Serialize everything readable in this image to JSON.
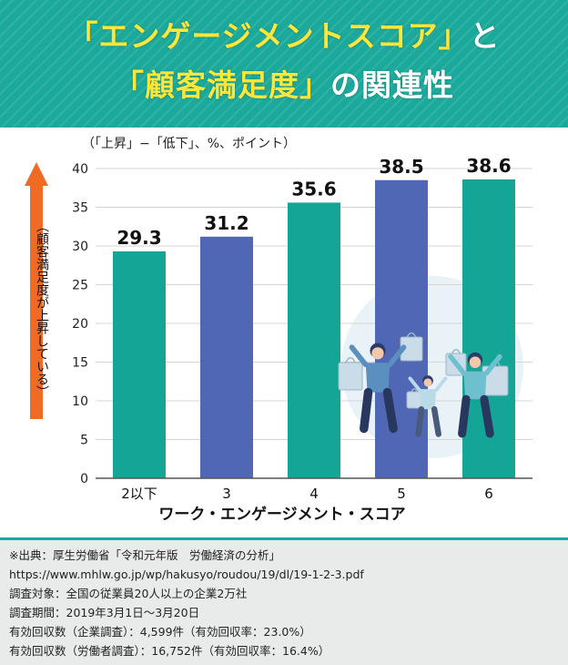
{
  "title": {
    "line1": [
      {
        "text": "「エンゲージメントスコア」",
        "highlight": true
      },
      {
        "text": "と",
        "highlight": false
      }
    ],
    "line2": [
      {
        "text": "「顧客満足度」",
        "highlight": true
      },
      {
        "text": "の関連性",
        "highlight": false
      }
    ]
  },
  "colors": {
    "header_bg": "#1aa99a",
    "highlight": "#ffe63b",
    "bar_teal": "#14a596",
    "bar_blue": "#4f67b4",
    "arrow": "#ee6a25"
  },
  "chart_data": {
    "type": "bar",
    "unit_note": "（「上昇」−「低下」、%、ポイント）",
    "categories": [
      "2以下",
      "3",
      "4",
      "5",
      "6"
    ],
    "values": [
      29.3,
      31.2,
      35.6,
      38.5,
      38.6
    ],
    "value_labels": [
      "29.3",
      "31.2",
      "35.6",
      "38.5",
      "38.6"
    ],
    "bar_colors": [
      "#14a596",
      "#4f67b4",
      "#14a596",
      "#4f67b4",
      "#14a596"
    ],
    "xlabel": "ワーク・エンゲージメント・スコア",
    "ylabel": "（顧客満足度が上昇している）",
    "ylim": [
      0,
      40
    ],
    "yticks": [
      0,
      5,
      10,
      15,
      20,
      25,
      30,
      35,
      40
    ],
    "grid": true
  },
  "footer": {
    "notes": [
      "※出典：厚生労働省「令和元年版　労働経済の分析」",
      "https://www.mhlw.go.jp/wp/hakusyo/roudou/19/dl/19-1-2-3.pdf",
      "調査対象：全国の従業員20人以上の企業2万社",
      "調査期間：2019年3月1日〜3月20日",
      "有効回収数（企業調査）：4,599件（有効回収率：23.0%）",
      "有効回収数（労働者調査）：16,752件（有効回収率：16.4%）"
    ]
  }
}
